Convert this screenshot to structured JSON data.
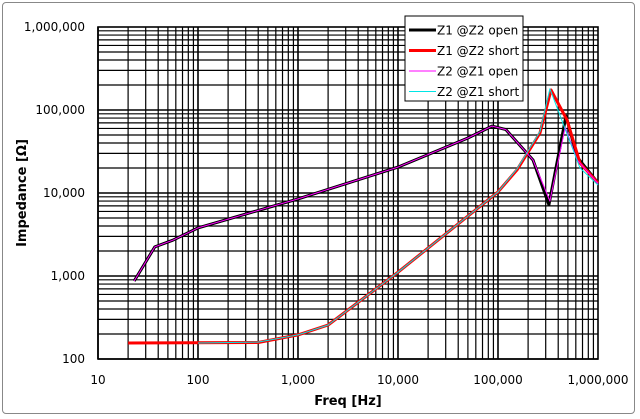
{
  "chart_data": {
    "type": "line",
    "title": "",
    "xlabel": "Freq [Hz]",
    "ylabel": "Impedance [Ω]",
    "xscale": "log",
    "yscale": "log",
    "xlim": [
      10,
      1000000
    ],
    "ylim": [
      100,
      1000000
    ],
    "grid": true,
    "legend_position": "top-right",
    "x_ticks": [
      "10",
      "100",
      "1,000",
      "10,000",
      "100,000",
      "1,000,000"
    ],
    "y_ticks": [
      "100",
      "1,000",
      "10,000",
      "100,000",
      "1,000,000"
    ],
    "series": [
      {
        "name": "Z1 @Z2 open",
        "color": "#000000",
        "width": 3,
        "points": [
          [
            23,
            870
          ],
          [
            37,
            2240
          ],
          [
            56,
            2700
          ],
          [
            100,
            3800
          ],
          [
            1000,
            8500
          ],
          [
            10000,
            20500
          ],
          [
            50000,
            46000
          ],
          [
            87000,
            64000
          ],
          [
            120000,
            58000
          ],
          [
            224000,
            25000
          ],
          [
            323000,
            7200
          ],
          [
            479000,
            85000
          ],
          [
            620000,
            27000
          ],
          [
            1000000,
            13200
          ]
        ]
      },
      {
        "name": "Z1 @Z2 short",
        "color": "#ff0000",
        "width": 3,
        "points": [
          [
            20,
            156
          ],
          [
            400,
            158
          ],
          [
            1000,
            195
          ],
          [
            2000,
            257
          ],
          [
            10000,
            1110
          ],
          [
            100000,
            10300
          ],
          [
            155000,
            19000
          ],
          [
            263000,
            53000
          ],
          [
            339000,
            174000
          ],
          [
            490000,
            76000
          ],
          [
            660000,
            23000
          ],
          [
            1000000,
            13200
          ]
        ]
      },
      {
        "name": "Z2 @Z1 open",
        "color": "#ff00ff",
        "width": 1,
        "points": [
          [
            23,
            870
          ],
          [
            37,
            2240
          ],
          [
            56,
            2700
          ],
          [
            100,
            3800
          ],
          [
            1000,
            8500
          ],
          [
            10000,
            20500
          ],
          [
            50000,
            46000
          ],
          [
            87000,
            64000
          ],
          [
            120000,
            58000
          ],
          [
            224000,
            25000
          ],
          [
            330000,
            8000
          ],
          [
            470000,
            62000
          ],
          [
            620000,
            25000
          ],
          [
            1000000,
            13000
          ]
        ]
      },
      {
        "name": "Z2 @Z1 short",
        "color": "#00e5e5",
        "width": 1,
        "points": [
          [
            100,
            156
          ],
          [
            400,
            160
          ],
          [
            1000,
            195
          ],
          [
            2000,
            257
          ],
          [
            10000,
            1110
          ],
          [
            100000,
            10300
          ],
          [
            155000,
            19500
          ],
          [
            263000,
            55000
          ],
          [
            330000,
            180000
          ],
          [
            480000,
            55000
          ],
          [
            660000,
            20000
          ],
          [
            1000000,
            12500
          ]
        ]
      }
    ]
  }
}
